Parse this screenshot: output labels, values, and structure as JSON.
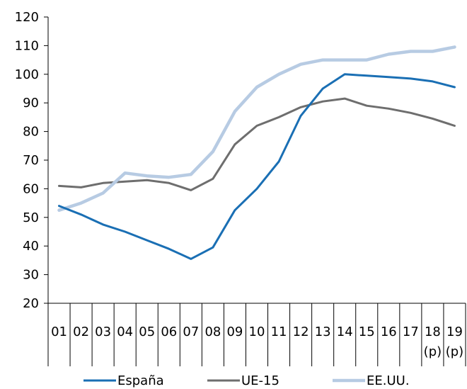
{
  "chart_data": {
    "type": "line",
    "categories": [
      [
        "01"
      ],
      [
        "02"
      ],
      [
        "03"
      ],
      [
        "04"
      ],
      [
        "05"
      ],
      [
        "06"
      ],
      [
        "07"
      ],
      [
        "08"
      ],
      [
        "09"
      ],
      [
        "10"
      ],
      [
        "11"
      ],
      [
        "12"
      ],
      [
        "13"
      ],
      [
        "14"
      ],
      [
        "15"
      ],
      [
        "16"
      ],
      [
        "17"
      ],
      [
        "18",
        "(p)"
      ],
      [
        "19",
        "(p)"
      ]
    ],
    "ylim": [
      20,
      120
    ],
    "yticks": [
      20,
      30,
      40,
      50,
      60,
      70,
      80,
      90,
      100,
      110,
      120
    ],
    "grid": false,
    "legend_position": "bottom",
    "series": [
      {
        "name": "España",
        "color": "#1a6fb4",
        "values": [
          54,
          51,
          47.5,
          45,
          42,
          39,
          35.5,
          39.5,
          52.5,
          60,
          69.5,
          85.5,
          95,
          100,
          99.5,
          99,
          98.5,
          97.5,
          95.5
        ]
      },
      {
        "name": "UE-15",
        "color": "#6e6e6e",
        "values": [
          61,
          60.5,
          62,
          62.5,
          63,
          62,
          59.5,
          63.5,
          75.5,
          82,
          85,
          88.5,
          90.5,
          91.5,
          89,
          88,
          86.5,
          84.5,
          82
        ]
      },
      {
        "name": "EE.UU.",
        "color": "#b7cbe3",
        "values": [
          52.5,
          55,
          58.5,
          65.5,
          64.5,
          64,
          65,
          73,
          87,
          95.5,
          100,
          103.5,
          105,
          105,
          105,
          107,
          108,
          108,
          109.5
        ]
      }
    ]
  }
}
